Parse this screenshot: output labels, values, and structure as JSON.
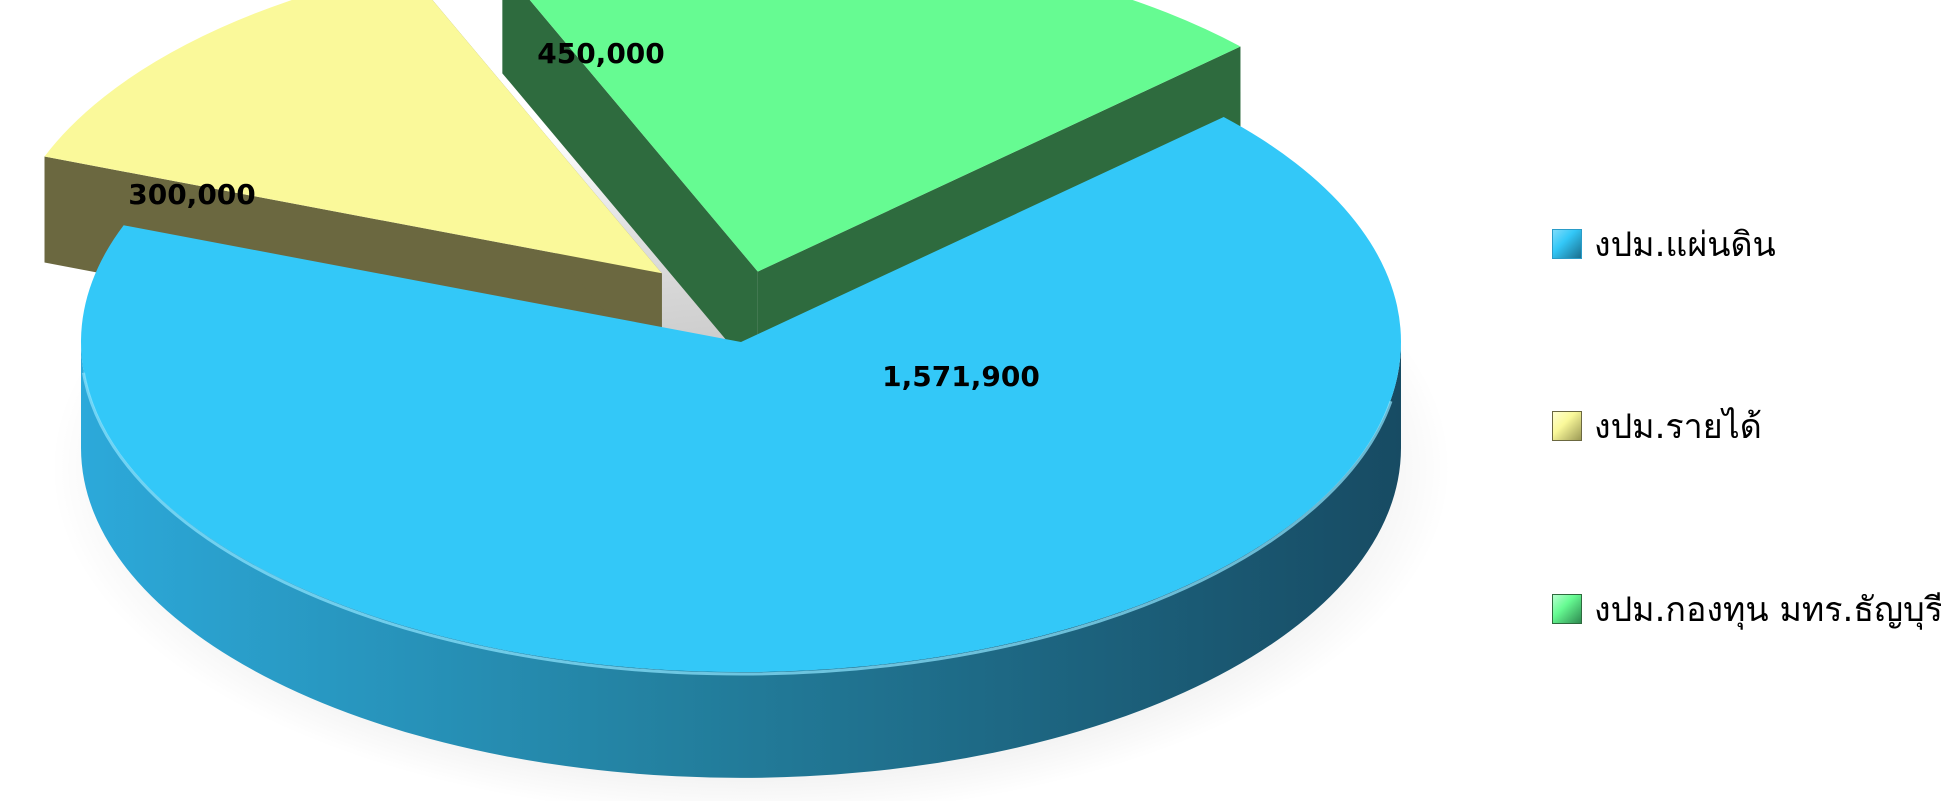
{
  "chart_data": {
    "type": "pie",
    "title": "",
    "legend_position": "right",
    "categories": [
      "งปม.แผ่นดิน",
      "งปม.รายได้",
      "งปม.กองทุน มทร.ธัญบุรี"
    ],
    "values": [
      1571900,
      300000,
      450000
    ],
    "data_labels": [
      "1,571,900",
      "300,000",
      "450,000"
    ],
    "colors": [
      "#33C8F8",
      "#FAF99A",
      "#66FB92"
    ],
    "side_colors": [
      "#2A9CC8",
      "#6B6840",
      "#2E6B3E"
    ],
    "exploded": [
      "งปม.รายได้",
      "งปม.กองทุน มทร.ธัญบุรี"
    ]
  }
}
